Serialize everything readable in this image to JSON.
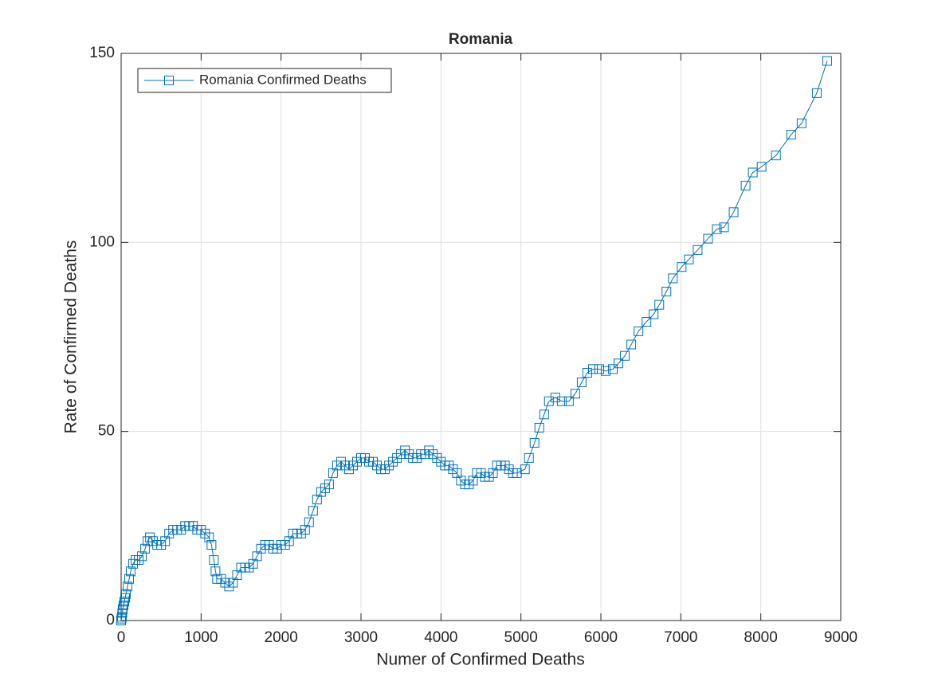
{
  "chart_data": {
    "type": "line",
    "title": "Romania",
    "xlabel": "Numer of Confirmed Deaths",
    "ylabel": "Rate of Confirmed Deaths",
    "xlim": [
      0,
      9000
    ],
    "xticks": [
      0,
      1000,
      2000,
      3000,
      4000,
      5000,
      6000,
      7000,
      8000,
      9000
    ],
    "ylim": [
      0,
      150
    ],
    "yticks": [
      0,
      50,
      100,
      150
    ],
    "grid": true,
    "legend": "upper left",
    "marker": "square",
    "x": [
      0,
      5,
      10,
      15,
      20,
      30,
      40,
      50,
      60,
      80,
      100,
      120,
      150,
      180,
      220,
      260,
      300,
      330,
      360,
      400,
      450,
      500,
      550,
      600,
      650,
      700,
      750,
      800,
      850,
      900,
      950,
      1000,
      1050,
      1100,
      1130,
      1160,
      1180,
      1200,
      1250,
      1300,
      1350,
      1400,
      1450,
      1500,
      1550,
      1600,
      1650,
      1700,
      1750,
      1800,
      1850,
      1900,
      1950,
      2000,
      2050,
      2100,
      2150,
      2200,
      2250,
      2300,
      2350,
      2400,
      2450,
      2500,
      2550,
      2600,
      2650,
      2700,
      2750,
      2800,
      2850,
      2900,
      2950,
      3000,
      3050,
      3100,
      3150,
      3200,
      3250,
      3300,
      3350,
      3400,
      3450,
      3500,
      3550,
      3600,
      3650,
      3700,
      3750,
      3800,
      3850,
      3900,
      3950,
      4000,
      4050,
      4100,
      4150,
      4200,
      4250,
      4300,
      4350,
      4400,
      4450,
      4500,
      4550,
      4600,
      4650,
      4700,
      4750,
      4800,
      4850,
      4900,
      4950,
      5050,
      5100,
      5170,
      5230,
      5290,
      5350,
      5430,
      5510,
      5600,
      5680,
      5760,
      5830,
      5900,
      5980,
      6060,
      6150,
      6220,
      6300,
      6380,
      6470,
      6570,
      6660,
      6730,
      6820,
      6900,
      7010,
      7100,
      7210,
      7340,
      7450,
      7540,
      7660,
      7810,
      7900,
      8010,
      8190,
      8380,
      8510,
      8700,
      8830
    ],
    "series": [
      {
        "name": "Romania Confirmed Deaths",
        "color": "#0072bd",
        "values": [
          0,
          0.5,
          1,
          2,
          3,
          4,
          5,
          6,
          7,
          9,
          11,
          13,
          15,
          16,
          16,
          17,
          19,
          21,
          22,
          21,
          20,
          20,
          21,
          23,
          24,
          24,
          24,
          25,
          25,
          25,
          24,
          24,
          23,
          22,
          20,
          16,
          13,
          11,
          11,
          10,
          9,
          10,
          12,
          14,
          14,
          14,
          15,
          17,
          19,
          20,
          20,
          19,
          19,
          20,
          20,
          21,
          23,
          23,
          23,
          24,
          26,
          29,
          32,
          34,
          35,
          36,
          39,
          41,
          42,
          41,
          40,
          41,
          42,
          43,
          43,
          42,
          42,
          41,
          40,
          40,
          41,
          42,
          43,
          44,
          45,
          44,
          43,
          43,
          44,
          44,
          45,
          44,
          43,
          42,
          41,
          41,
          40,
          39,
          37,
          36,
          36,
          37,
          39,
          39,
          38,
          38,
          39,
          41,
          41,
          41,
          40,
          39,
          39,
          40,
          43,
          47,
          51,
          54.5,
          58,
          59,
          58,
          58,
          60,
          63,
          65.5,
          66.5,
          66.5,
          66,
          66.5,
          68,
          70,
          73,
          76.5,
          79,
          81,
          83.5,
          87,
          90.5,
          93.5,
          95.5,
          98,
          101,
          103.5,
          104,
          108,
          115,
          118.5,
          120,
          123,
          128.5,
          131.5,
          139.5,
          148
        ]
      }
    ]
  }
}
